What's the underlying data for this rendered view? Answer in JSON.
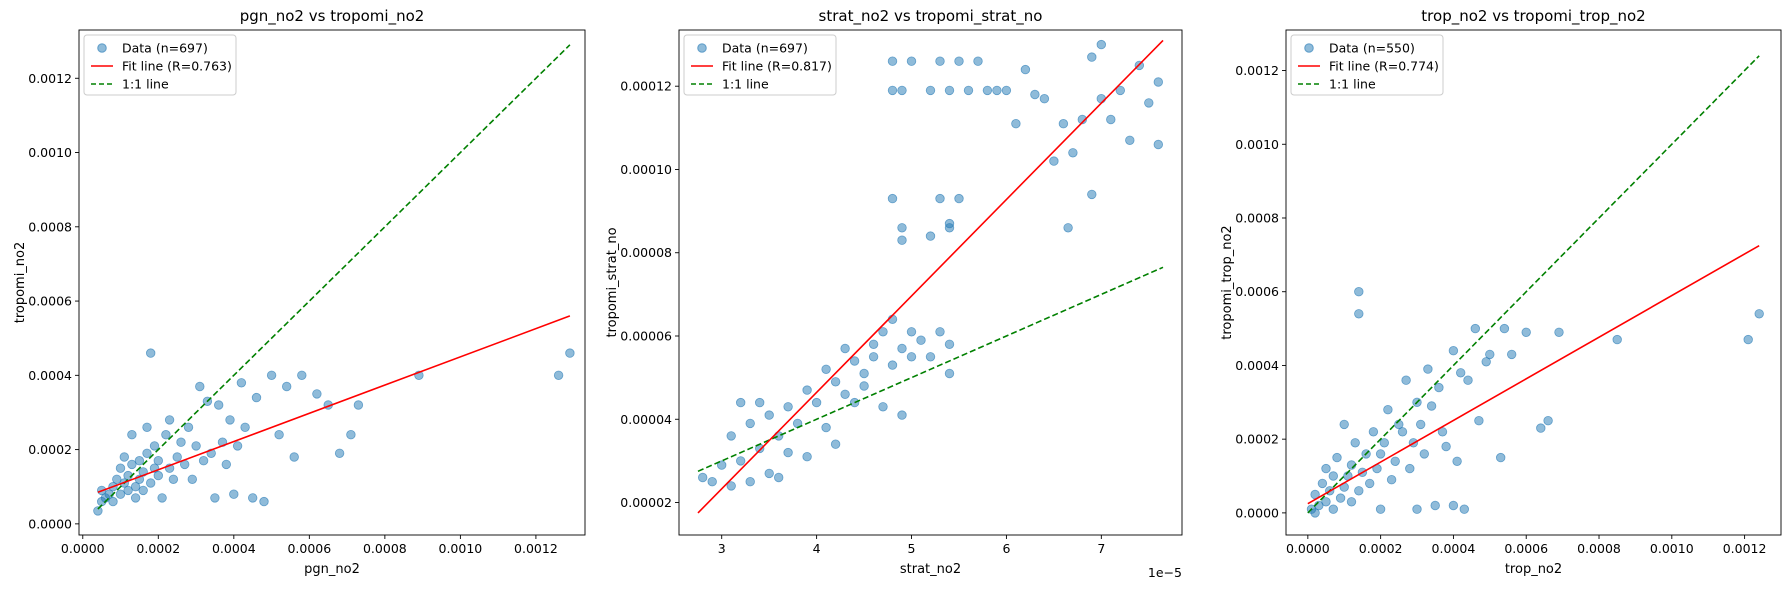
{
  "chart_data": [
    {
      "type": "scatter",
      "title": "pgn_no2 vs tropomi_no2",
      "xlabel": "pgn_no2",
      "ylabel": "tropomi_no2",
      "xlim": [
        -1e-05,
        0.00133
      ],
      "ylim": [
        -3e-05,
        0.00133
      ],
      "xticks": [
        {
          "v": 0.0,
          "label": "0.0000"
        },
        {
          "v": 0.0002,
          "label": "0.0002"
        },
        {
          "v": 0.0004,
          "label": "0.0004"
        },
        {
          "v": 0.0006,
          "label": "0.0006"
        },
        {
          "v": 0.0008,
          "label": "0.0008"
        },
        {
          "v": 0.001,
          "label": "0.0010"
        },
        {
          "v": 0.0012,
          "label": "0.0012"
        }
      ],
      "yticks": [
        {
          "v": 0.0,
          "label": "0.0000"
        },
        {
          "v": 0.0002,
          "label": "0.0002"
        },
        {
          "v": 0.0004,
          "label": "0.0004"
        },
        {
          "v": 0.0006,
          "label": "0.0006"
        },
        {
          "v": 0.0008,
          "label": "0.0008"
        },
        {
          "v": 0.001,
          "label": "0.0010"
        },
        {
          "v": 0.0012,
          "label": "0.0012"
        }
      ],
      "offset_text": "",
      "legend": {
        "position": "top-left",
        "data_label": "Data (n=697)",
        "fit_label": "Fit line (R=0.763)",
        "one_to_one_label": "1:1 line"
      },
      "fit_line": {
        "x": [
          4e-05,
          0.00129
        ],
        "y": [
          8.5e-05,
          0.00056
        ]
      },
      "one_to_one_line": {
        "x": [
          4e-05,
          0.00129
        ],
        "y": [
          4e-05,
          0.00129
        ]
      },
      "points": [
        [
          4e-05,
          3.5e-05
        ],
        [
          5e-05,
          6e-05
        ],
        [
          5e-05,
          9e-05
        ],
        [
          6e-05,
          7e-05
        ],
        [
          7e-05,
          8e-05
        ],
        [
          8e-05,
          6e-05
        ],
        [
          8e-05,
          0.0001
        ],
        [
          9e-05,
          0.00012
        ],
        [
          0.0001,
          8e-05
        ],
        [
          0.0001,
          0.00015
        ],
        [
          0.00011,
          0.00011
        ],
        [
          0.00011,
          0.00018
        ],
        [
          0.00012,
          9e-05
        ],
        [
          0.00012,
          0.00013
        ],
        [
          0.00013,
          0.00016
        ],
        [
          0.00013,
          0.00024
        ],
        [
          0.00014,
          7e-05
        ],
        [
          0.00014,
          0.0001
        ],
        [
          0.00015,
          0.00012
        ],
        [
          0.00015,
          0.00017
        ],
        [
          0.00016,
          0.00014
        ],
        [
          0.00016,
          9e-05
        ],
        [
          0.00017,
          0.00019
        ],
        [
          0.00017,
          0.00026
        ],
        [
          0.00018,
          0.00011
        ],
        [
          0.00018,
          0.00046
        ],
        [
          0.00019,
          0.00015
        ],
        [
          0.00019,
          0.00021
        ],
        [
          0.0002,
          0.00013
        ],
        [
          0.0002,
          0.00017
        ],
        [
          0.00021,
          7e-05
        ],
        [
          0.00022,
          0.00024
        ],
        [
          0.00023,
          0.00015
        ],
        [
          0.00023,
          0.00028
        ],
        [
          0.00024,
          0.00012
        ],
        [
          0.00025,
          0.00018
        ],
        [
          0.00026,
          0.00022
        ],
        [
          0.00027,
          0.00016
        ],
        [
          0.00028,
          0.00026
        ],
        [
          0.00029,
          0.00012
        ],
        [
          0.0003,
          0.00021
        ],
        [
          0.00031,
          0.00037
        ],
        [
          0.00032,
          0.00017
        ],
        [
          0.00033,
          0.00033
        ],
        [
          0.00034,
          0.00019
        ],
        [
          0.00035,
          7e-05
        ],
        [
          0.00036,
          0.00032
        ],
        [
          0.00037,
          0.00022
        ],
        [
          0.00038,
          0.00016
        ],
        [
          0.00039,
          0.00028
        ],
        [
          0.0004,
          8e-05
        ],
        [
          0.00041,
          0.00021
        ],
        [
          0.00042,
          0.00038
        ],
        [
          0.00043,
          0.00026
        ],
        [
          0.00045,
          7e-05
        ],
        [
          0.00046,
          0.00034
        ],
        [
          0.00048,
          6e-05
        ],
        [
          0.0005,
          0.0004
        ],
        [
          0.00052,
          0.00024
        ],
        [
          0.00054,
          0.00037
        ],
        [
          0.00056,
          0.00018
        ],
        [
          0.00058,
          0.0004
        ],
        [
          0.00062,
          0.00035
        ],
        [
          0.00065,
          0.00032
        ],
        [
          0.00068,
          0.00019
        ],
        [
          0.00071,
          0.00024
        ],
        [
          0.00073,
          0.00032
        ],
        [
          0.00089,
          0.0004
        ],
        [
          0.00126,
          0.0004
        ],
        [
          0.00129,
          0.00046
        ]
      ]
    },
    {
      "type": "scatter",
      "title": "strat_no2 vs tropomi_strat_no",
      "xlabel": "strat_no2",
      "ylabel": "tropomi_strat_no",
      "xlim": [
        2.55,
        7.85
      ],
      "ylim": [
        1.22e-05,
        0.0001335
      ],
      "xticks": [
        {
          "v": 3,
          "label": "3"
        },
        {
          "v": 4,
          "label": "4"
        },
        {
          "v": 5,
          "label": "5"
        },
        {
          "v": 6,
          "label": "6"
        },
        {
          "v": 7,
          "label": "7"
        }
      ],
      "yticks": [
        {
          "v": 2e-05,
          "label": "0.00002"
        },
        {
          "v": 4e-05,
          "label": "0.00004"
        },
        {
          "v": 6e-05,
          "label": "0.00006"
        },
        {
          "v": 8e-05,
          "label": "0.00008"
        },
        {
          "v": 0.0001,
          "label": "0.00010"
        },
        {
          "v": 0.00012,
          "label": "0.00012"
        }
      ],
      "offset_text": "1e−5",
      "legend": {
        "position": "top-left",
        "data_label": "Data (n=697)",
        "fit_label": "Fit line (R=0.817)",
        "one_to_one_label": "1:1 line"
      },
      "fit_line": {
        "x": [
          2.75,
          7.65
        ],
        "y": [
          1.75e-05,
          0.000131
        ]
      },
      "one_to_one_line": {
        "x": [
          2.75,
          7.65
        ],
        "y": [
          2.75e-05,
          7.65e-05
        ]
      },
      "points": [
        [
          2.8,
          2.6e-05
        ],
        [
          2.9,
          2.5e-05
        ],
        [
          3.0,
          2.9e-05
        ],
        [
          3.1,
          2.4e-05
        ],
        [
          3.1,
          3.6e-05
        ],
        [
          3.2,
          3e-05
        ],
        [
          3.2,
          4.4e-05
        ],
        [
          3.3,
          2.5e-05
        ],
        [
          3.3,
          3.9e-05
        ],
        [
          3.4,
          3.3e-05
        ],
        [
          3.4,
          4.4e-05
        ],
        [
          3.5,
          2.7e-05
        ],
        [
          3.5,
          4.1e-05
        ],
        [
          3.6,
          3.6e-05
        ],
        [
          3.6,
          2.6e-05
        ],
        [
          3.7,
          3.2e-05
        ],
        [
          3.7,
          4.3e-05
        ],
        [
          3.8,
          3.9e-05
        ],
        [
          3.9,
          4.7e-05
        ],
        [
          3.9,
          3.1e-05
        ],
        [
          4.0,
          4.4e-05
        ],
        [
          4.1,
          3.8e-05
        ],
        [
          4.1,
          5.2e-05
        ],
        [
          4.2,
          3.4e-05
        ],
        [
          4.2,
          4.9e-05
        ],
        [
          4.3,
          4.6e-05
        ],
        [
          4.3,
          5.7e-05
        ],
        [
          4.4,
          4.4e-05
        ],
        [
          4.4,
          5.4e-05
        ],
        [
          4.5,
          5.1e-05
        ],
        [
          4.5,
          4.8e-05
        ],
        [
          4.6,
          5.8e-05
        ],
        [
          4.6,
          5.5e-05
        ],
        [
          4.7,
          4.3e-05
        ],
        [
          4.7,
          6.1e-05
        ],
        [
          4.8,
          5.3e-05
        ],
        [
          4.8,
          6.4e-05
        ],
        [
          4.9,
          5.7e-05
        ],
        [
          4.9,
          4.1e-05
        ],
        [
          5.0,
          5.5e-05
        ],
        [
          5.0,
          6.1e-05
        ],
        [
          5.1,
          5.9e-05
        ],
        [
          5.2,
          5.5e-05
        ],
        [
          5.3,
          6.1e-05
        ],
        [
          5.4,
          5.8e-05
        ],
        [
          5.4,
          5.1e-05
        ],
        [
          4.8,
          9.3e-05
        ],
        [
          4.9,
          8.6e-05
        ],
        [
          4.9,
          8.3e-05
        ],
        [
          5.2,
          8.4e-05
        ],
        [
          5.3,
          9.3e-05
        ],
        [
          5.4,
          8.6e-05
        ],
        [
          5.4,
          8.7e-05
        ],
        [
          5.5,
          9.3e-05
        ],
        [
          4.8,
          0.000119
        ],
        [
          4.8,
          0.000126
        ],
        [
          4.9,
          0.000119
        ],
        [
          5.0,
          0.000126
        ],
        [
          5.2,
          0.000119
        ],
        [
          5.3,
          0.000126
        ],
        [
          5.4,
          0.000119
        ],
        [
          5.5,
          0.000126
        ],
        [
          5.6,
          0.000119
        ],
        [
          5.7,
          0.000126
        ],
        [
          5.8,
          0.000119
        ],
        [
          5.9,
          0.000119
        ],
        [
          6.0,
          0.000119
        ],
        [
          6.1,
          0.000111
        ],
        [
          6.2,
          0.000124
        ],
        [
          6.3,
          0.000118
        ],
        [
          6.4,
          0.000117
        ],
        [
          6.5,
          0.000102
        ],
        [
          6.6,
          0.000111
        ],
        [
          6.65,
          8.6e-05
        ],
        [
          6.7,
          0.000104
        ],
        [
          6.8,
          0.000112
        ],
        [
          6.9,
          9.4e-05
        ],
        [
          6.9,
          0.000127
        ],
        [
          7.0,
          0.00013
        ],
        [
          7.0,
          0.000117
        ],
        [
          7.1,
          0.000112
        ],
        [
          7.2,
          0.000119
        ],
        [
          7.3,
          0.000107
        ],
        [
          7.4,
          0.000125
        ],
        [
          7.5,
          0.000116
        ],
        [
          7.6,
          0.000121
        ],
        [
          7.6,
          0.000106
        ]
      ]
    },
    {
      "type": "scatter",
      "title": "trop_no2 vs tropomi_trop_no2",
      "xlabel": "trop_no2",
      "ylabel": "tropomi_trop_no2",
      "xlim": [
        -6e-05,
        0.0013
      ],
      "ylim": [
        -6e-05,
        0.00131
      ],
      "xticks": [
        {
          "v": 0.0,
          "label": "0.0000"
        },
        {
          "v": 0.0002,
          "label": "0.0002"
        },
        {
          "v": 0.0004,
          "label": "0.0004"
        },
        {
          "v": 0.0006,
          "label": "0.0006"
        },
        {
          "v": 0.0008,
          "label": "0.0008"
        },
        {
          "v": 0.001,
          "label": "0.0010"
        },
        {
          "v": 0.0012,
          "label": "0.0012"
        }
      ],
      "yticks": [
        {
          "v": 0.0,
          "label": "0.0000"
        },
        {
          "v": 0.0002,
          "label": "0.0002"
        },
        {
          "v": 0.0004,
          "label": "0.0004"
        },
        {
          "v": 0.0006,
          "label": "0.0006"
        },
        {
          "v": 0.0008,
          "label": "0.0008"
        },
        {
          "v": 0.001,
          "label": "0.0010"
        },
        {
          "v": 0.0012,
          "label": "0.0012"
        }
      ],
      "offset_text": "",
      "legend": {
        "position": "top-left",
        "data_label": "Data (n=550)",
        "fit_label": "Fit line (R=0.774)",
        "one_to_one_label": "1:1 line"
      },
      "fit_line": {
        "x": [
          0.0,
          0.00124
        ],
        "y": [
          2.5e-05,
          0.000725
        ]
      },
      "one_to_one_line": {
        "x": [
          0.0,
          0.00124
        ],
        "y": [
          0.0,
          0.00124
        ]
      },
      "points": [
        [
          1e-05,
          1e-05
        ],
        [
          2e-05,
          5e-05
        ],
        [
          2e-05,
          0.0
        ],
        [
          3e-05,
          2e-05
        ],
        [
          4e-05,
          8e-05
        ],
        [
          5e-05,
          3e-05
        ],
        [
          5e-05,
          0.00012
        ],
        [
          6e-05,
          6e-05
        ],
        [
          7e-05,
          0.0001
        ],
        [
          7e-05,
          1e-05
        ],
        [
          8e-05,
          0.00015
        ],
        [
          9e-05,
          4e-05
        ],
        [
          0.0001,
          7e-05
        ],
        [
          0.0001,
          0.00024
        ],
        [
          0.00011,
          0.0001
        ],
        [
          0.00012,
          3e-05
        ],
        [
          0.00012,
          0.00013
        ],
        [
          0.00013,
          0.00019
        ],
        [
          0.00014,
          6e-05
        ],
        [
          0.00014,
          0.00054
        ],
        [
          0.00014,
          0.0006
        ],
        [
          0.00015,
          0.00011
        ],
        [
          0.00016,
          0.00016
        ],
        [
          0.00017,
          8e-05
        ],
        [
          0.00018,
          0.00022
        ],
        [
          0.00019,
          0.00012
        ],
        [
          0.0002,
          1e-05
        ],
        [
          0.0002,
          0.00016
        ],
        [
          0.00021,
          0.00019
        ],
        [
          0.00022,
          0.00028
        ],
        [
          0.00023,
          9e-05
        ],
        [
          0.00024,
          0.00014
        ],
        [
          0.00025,
          0.00024
        ],
        [
          0.00026,
          0.00022
        ],
        [
          0.00027,
          0.00036
        ],
        [
          0.00028,
          0.00012
        ],
        [
          0.00029,
          0.00019
        ],
        [
          0.0003,
          0.0003
        ],
        [
          0.0003,
          1e-05
        ],
        [
          0.00031,
          0.00024
        ],
        [
          0.00032,
          0.00016
        ],
        [
          0.00033,
          0.00039
        ],
        [
          0.00034,
          0.00029
        ],
        [
          0.00035,
          2e-05
        ],
        [
          0.00036,
          0.00034
        ],
        [
          0.00037,
          0.00022
        ],
        [
          0.00038,
          0.00018
        ],
        [
          0.0004,
          0.00044
        ],
        [
          0.0004,
          2e-05
        ],
        [
          0.00041,
          0.00014
        ],
        [
          0.00042,
          0.00038
        ],
        [
          0.00043,
          1e-05
        ],
        [
          0.00044,
          0.00036
        ],
        [
          0.00046,
          0.0005
        ],
        [
          0.00047,
          0.00025
        ],
        [
          0.00049,
          0.00041
        ],
        [
          0.0005,
          0.00043
        ],
        [
          0.00053,
          0.00015
        ],
        [
          0.00054,
          0.0005
        ],
        [
          0.00056,
          0.00043
        ],
        [
          0.0006,
          0.00049
        ],
        [
          0.00064,
          0.00023
        ],
        [
          0.00066,
          0.00025
        ],
        [
          0.00069,
          0.00049
        ],
        [
          0.00085,
          0.00047
        ],
        [
          0.00121,
          0.00047
        ],
        [
          0.00124,
          0.00054
        ]
      ]
    }
  ],
  "colors": {
    "points": "#1f77b4",
    "fit_line": "#ff0000",
    "one_to_one_line": "#008000"
  }
}
